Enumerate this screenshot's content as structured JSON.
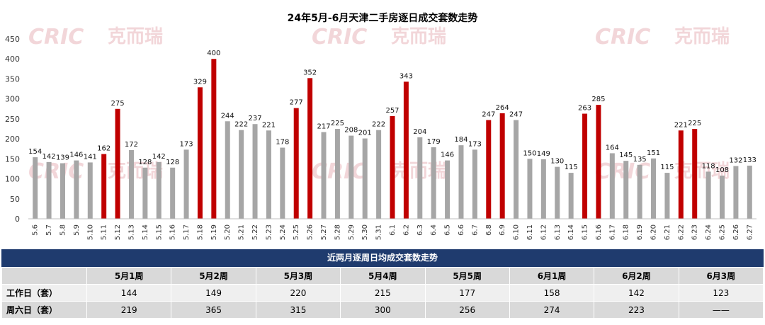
{
  "chart_data": {
    "type": "bar",
    "title": "24年5月-6月天津二手房逐日成交套数走势",
    "categories": [
      "5.6",
      "5.7",
      "5.8",
      "5.9",
      "5.10",
      "5.11",
      "5.12",
      "5.13",
      "5.14",
      "5.15",
      "5.16",
      "5.17",
      "5.18",
      "5.19",
      "5.20",
      "5.21",
      "5.22",
      "5.23",
      "5.24",
      "5.25",
      "5.26",
      "5.27",
      "5.28",
      "5.29",
      "5.30",
      "5.31",
      "6.1",
      "6.2",
      "6.3",
      "6.4",
      "6.5",
      "6.6",
      "6.7",
      "6.8",
      "6.9",
      "6.10",
      "6.11",
      "6.12",
      "6.13",
      "6.14",
      "6.15",
      "6.16",
      "6.17",
      "6.18",
      "6.19",
      "6.20",
      "6.21",
      "6.22",
      "6.23",
      "6.24",
      "6.25",
      "6.26",
      "6.27"
    ],
    "values": [
      154,
      142,
      139,
      146,
      141,
      162,
      275,
      172,
      128,
      142,
      128,
      173,
      329,
      400,
      244,
      222,
      237,
      221,
      178,
      277,
      352,
      217,
      225,
      208,
      201,
      222,
      257,
      343,
      204,
      179,
      146,
      184,
      173,
      247,
      264,
      247,
      150,
      149,
      130,
      115,
      263,
      285,
      164,
      145,
      135,
      151,
      115,
      221,
      225,
      118,
      108,
      132,
      133
    ],
    "weekend_categories": [
      "5.11",
      "5.12",
      "5.18",
      "5.19",
      "5.25",
      "5.26",
      "6.1",
      "6.2",
      "6.8",
      "6.9",
      "6.15",
      "6.16",
      "6.22",
      "6.23"
    ],
    "ylim": [
      0,
      450
    ],
    "yticks": [
      0,
      50,
      100,
      150,
      200,
      250,
      300,
      350,
      400,
      450
    ],
    "colors": {
      "weekday": "#a6a6a6",
      "weekend": "#c00000"
    },
    "grid": false,
    "legend": "none"
  },
  "watermark": {
    "logo": "CRIC",
    "brand": "克而瑞"
  },
  "table": {
    "title": "近两月逐周日均成交套数走势",
    "headers": [
      "",
      "5月1周",
      "5月2周",
      "5月3周",
      "5月4周",
      "5月5周",
      "6月1周",
      "6月2周",
      "6月3周"
    ],
    "rows": [
      {
        "label": "工作日（套）",
        "values": [
          "144",
          "149",
          "220",
          "215",
          "177",
          "158",
          "142",
          "123"
        ]
      },
      {
        "label": "周六日（套）",
        "values": [
          "219",
          "365",
          "315",
          "300",
          "256",
          "274",
          "223",
          "——"
        ]
      }
    ]
  }
}
